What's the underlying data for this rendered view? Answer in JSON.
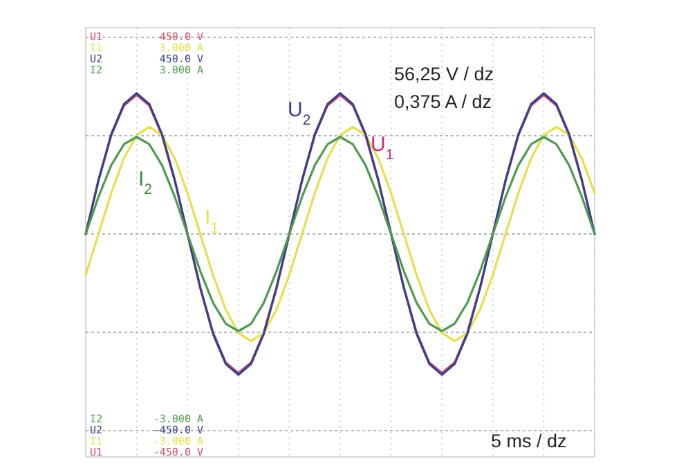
{
  "chart_data": {
    "type": "line",
    "categories": [
      null,
      null,
      null,
      null,
      null,
      null,
      null,
      null,
      null,
      null,
      null,
      null,
      null,
      null,
      null,
      null,
      null,
      null,
      null,
      null,
      null,
      null,
      null,
      null,
      null,
      null,
      null,
      null,
      null,
      null,
      null,
      null,
      null,
      null,
      null,
      null,
      null,
      null,
      null,
      null,
      null
    ],
    "series": [
      {
        "name": "U1",
        "color": "#d0506a",
        "axis": "y",
        "values": [
          0,
          122,
          225,
          294,
          318,
          294,
          225,
          122,
          0,
          -122,
          -225,
          -294,
          -318,
          -294,
          -225,
          -122,
          0,
          122,
          225,
          294,
          318,
          294,
          225,
          122,
          0,
          -122,
          -225,
          -294,
          -318,
          -294,
          -225,
          -122,
          0,
          122,
          225,
          294,
          318,
          294,
          225,
          122,
          0
        ]
      },
      {
        "name": "I1",
        "color": "#e6e04c",
        "axis": "y2",
        "values": [
          -0.66,
          0,
          0.66,
          1.22,
          1.6,
          1.73,
          1.6,
          1.22,
          0.66,
          0,
          -0.66,
          -1.22,
          -1.6,
          -1.73,
          -1.6,
          -1.22,
          -0.66,
          0,
          0.66,
          1.22,
          1.6,
          1.73,
          1.6,
          1.22,
          0.66,
          0,
          -0.66,
          -1.22,
          -1.6,
          -1.73,
          -1.6,
          -1.22,
          -0.66,
          0,
          0.66,
          1.22,
          1.6,
          1.73,
          1.6,
          1.22,
          0.66
        ]
      },
      {
        "name": "U2",
        "color": "#3c3f8c",
        "axis": "y",
        "values": [
          0,
          123,
          228,
          297,
          322,
          297,
          228,
          123,
          0,
          -123,
          -228,
          -297,
          -322,
          -297,
          -228,
          -123,
          0,
          123,
          228,
          297,
          322,
          297,
          228,
          123,
          0,
          -123,
          -228,
          -297,
          -322,
          -297,
          -228,
          -123,
          0,
          123,
          228,
          297,
          322,
          297,
          228,
          123,
          0
        ]
      },
      {
        "name": "I2",
        "color": "#4f9a4f",
        "axis": "y2",
        "values": [
          0,
          0.6,
          1.11,
          1.45,
          1.57,
          1.45,
          1.11,
          0.6,
          0,
          -0.6,
          -1.11,
          -1.45,
          -1.57,
          -1.45,
          -1.11,
          -0.6,
          0,
          0.6,
          1.11,
          1.45,
          1.57,
          1.45,
          1.11,
          0.6,
          0,
          -0.6,
          -1.11,
          -1.45,
          -1.57,
          -1.45,
          -1.11,
          -0.6,
          0,
          0.6,
          1.11,
          1.45,
          1.57,
          1.45,
          1.11,
          0.6,
          0
        ]
      }
    ],
    "ylim": [
      -450,
      450
    ],
    "yticks": [
      {
        "value": -450,
        "label": "-450.0 V"
      },
      {
        "value": -225,
        "label": null
      },
      {
        "value": 0,
        "label": null
      },
      {
        "value": 225,
        "label": null
      },
      {
        "value": 450,
        "label": "450.0 V"
      }
    ],
    "y2lim": [
      -3,
      3
    ],
    "y2ticks": [
      {
        "value": -3,
        "label": "-3.000 A"
      },
      {
        "value": 3,
        "label": "3.000 A"
      }
    ],
    "grid": true,
    "marker": "none",
    "line_style": "solid",
    "annotations": [
      "56,25 V / dz",
      "0,375 A / dz",
      "5 ms / dz",
      "U$_{2}$",
      "U$_{1}$",
      "I$_{2}$",
      "I$_{1}$"
    ]
  }
}
